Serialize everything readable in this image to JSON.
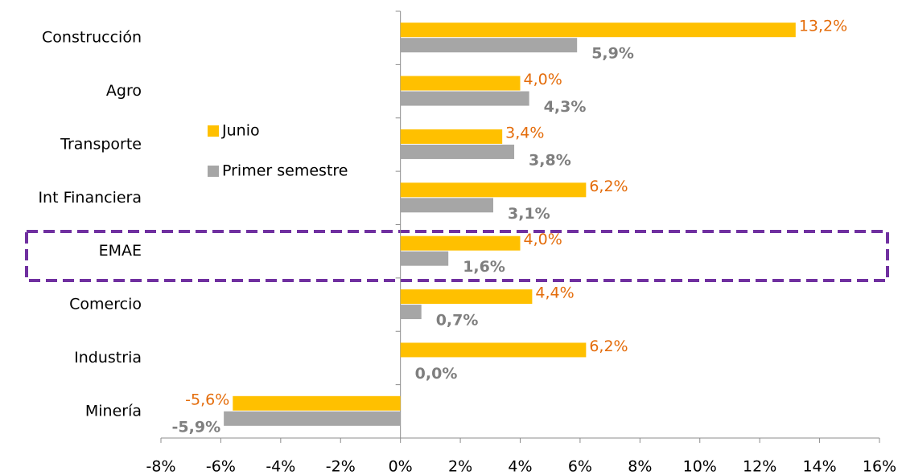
{
  "chart_data": {
    "type": "hbar",
    "categories": [
      "Construcción",
      "Agro",
      "Transporte",
      "Int Financiera",
      "EMAE",
      "Comercio",
      "Industria",
      "Minería"
    ],
    "series": [
      {
        "name": "Junio",
        "color": "#ffc000",
        "values": [
          13.2,
          4.0,
          3.4,
          6.2,
          4.0,
          4.4,
          6.2,
          -5.6
        ],
        "value_labels": [
          "13,2%",
          "4,0%",
          "3,4%",
          "6,2%",
          "4,0%",
          "4,4%",
          "6,2%",
          "-5,6%"
        ]
      },
      {
        "name": "Primer semestre",
        "color": "#a6a6a6",
        "values": [
          5.9,
          4.3,
          3.8,
          3.1,
          1.6,
          0.7,
          0.0,
          -5.9
        ],
        "value_labels": [
          "5,9%",
          "4,3%",
          "3,8%",
          "3,1%",
          "1,6%",
          "0,7%",
          "0,0%",
          "-5,9%"
        ]
      }
    ],
    "xlim": [
      -8,
      16
    ],
    "xticks": [
      {
        "value": -8,
        "label": "-8%"
      },
      {
        "value": -6,
        "label": "-6%"
      },
      {
        "value": -4,
        "label": "-4%"
      },
      {
        "value": -2,
        "label": "-2%"
      },
      {
        "value": 0,
        "label": "0%"
      },
      {
        "value": 2,
        "label": "2%"
      },
      {
        "value": 4,
        "label": "4%"
      },
      {
        "value": 6,
        "label": "6%"
      },
      {
        "value": 8,
        "label": "8%"
      },
      {
        "value": 10,
        "label": "10%"
      },
      {
        "value": 12,
        "label": "12%"
      },
      {
        "value": 14,
        "label": "14%"
      },
      {
        "value": 16,
        "label": "16%"
      }
    ],
    "legend": "upper left"
  }
}
